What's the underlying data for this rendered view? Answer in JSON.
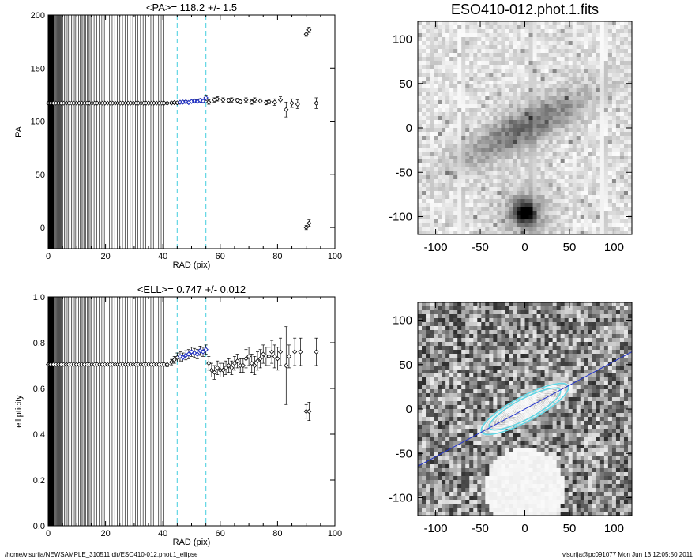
{
  "footer": {
    "path": "/home/visurija/NEWSAMPLE_310511.dir/ESO410-012.phot.1_ellipse",
    "stamp": "visurija@pc091077  Mon Jun 13 12:05:50 2011"
  },
  "image_title": "ESO410-012.phot.1.fits",
  "chart_data": [
    {
      "type": "scatter",
      "title": "<PA>= 118.2 +/-   1.5",
      "xlabel": "RAD (pix)",
      "ylabel": "PA",
      "xlim": [
        0,
        100
      ],
      "ylim": [
        -20,
        200
      ],
      "xticks": [
        "0",
        "20",
        "40",
        "60",
        "80",
        "100"
      ],
      "yticks": [
        "0",
        "50",
        "100",
        "150",
        "200"
      ],
      "fit_window": [
        45,
        55
      ],
      "dense_region_end": 41,
      "points": [
        [
          41.5,
          117.0,
          1
        ],
        [
          43,
          117.2,
          1
        ],
        [
          44,
          117.5,
          1
        ],
        [
          45,
          117.3,
          1
        ],
        [
          46,
          117.8,
          1
        ],
        [
          47,
          118.0,
          1.2
        ],
        [
          48,
          118.3,
          1.2
        ],
        [
          49,
          117.6,
          1.2
        ],
        [
          50,
          118.6,
          1.2
        ],
        [
          51,
          119.0,
          1.5
        ],
        [
          52,
          118.6,
          1.5
        ],
        [
          53,
          119.6,
          1.5
        ],
        [
          54,
          119.0,
          1.5
        ],
        [
          55,
          122.0,
          2.5
        ],
        [
          56,
          118.0,
          2
        ],
        [
          58,
          120.0,
          2
        ],
        [
          59,
          121.0,
          2
        ],
        [
          61,
          120.0,
          2
        ],
        [
          63,
          119.5,
          2
        ],
        [
          64,
          120.0,
          2
        ],
        [
          66,
          119.5,
          2
        ],
        [
          67,
          118.5,
          2
        ],
        [
          69,
          120.0,
          2
        ],
        [
          71,
          118.0,
          2
        ],
        [
          72,
          120.0,
          2
        ],
        [
          74,
          119.0,
          2
        ],
        [
          76,
          117.5,
          2
        ],
        [
          77,
          118.5,
          2
        ],
        [
          79,
          118.0,
          3
        ],
        [
          81,
          120.0,
          3
        ],
        [
          83,
          111.0,
          7
        ],
        [
          85,
          117.0,
          4
        ],
        [
          87,
          116.0,
          4
        ],
        [
          90,
          182.0,
          2
        ],
        [
          91,
          186.0,
          2.5
        ],
        [
          90,
          0.0,
          2
        ],
        [
          91,
          4.0,
          3
        ],
        [
          93.5,
          117.0,
          5
        ]
      ],
      "blue_points": [
        [
          46,
          117.8
        ],
        [
          47,
          118.0
        ],
        [
          48,
          118.3
        ],
        [
          49,
          117.6
        ],
        [
          50,
          118.6
        ],
        [
          51,
          119.0
        ],
        [
          52,
          118.6
        ],
        [
          53,
          119.6
        ],
        [
          54,
          119.0
        ],
        [
          55,
          122.0
        ]
      ]
    },
    {
      "type": "scatter",
      "title": "<ELL>= 0.747 +/-  0.012",
      "xlabel": "RAD (pix)",
      "ylabel": "ellipticity",
      "xlim": [
        0,
        100
      ],
      "ylim": [
        0.0,
        1.0
      ],
      "xticks": [
        "0",
        "20",
        "40",
        "60",
        "80",
        "100"
      ],
      "yticks": [
        "0.0",
        "0.2",
        "0.4",
        "0.6",
        "0.8",
        "1.0"
      ],
      "fit_window": [
        45,
        55
      ],
      "dense_region_end": 41,
      "points": [
        [
          41.5,
          0.705,
          0.01
        ],
        [
          43,
          0.715,
          0.012
        ],
        [
          44,
          0.725,
          0.015
        ],
        [
          45,
          0.735,
          0.02
        ],
        [
          46,
          0.74,
          0.02
        ],
        [
          47,
          0.735,
          0.02
        ],
        [
          48,
          0.745,
          0.02
        ],
        [
          49,
          0.75,
          0.02
        ],
        [
          50,
          0.76,
          0.02
        ],
        [
          51,
          0.755,
          0.02
        ],
        [
          52,
          0.75,
          0.02
        ],
        [
          53,
          0.765,
          0.02
        ],
        [
          54,
          0.76,
          0.02
        ],
        [
          55,
          0.77,
          0.02
        ],
        [
          56,
          0.71,
          0.03
        ],
        [
          57,
          0.68,
          0.03
        ],
        [
          58,
          0.67,
          0.03
        ],
        [
          59,
          0.69,
          0.03
        ],
        [
          60,
          0.68,
          0.03
        ],
        [
          61,
          0.68,
          0.03
        ],
        [
          62,
          0.69,
          0.03
        ],
        [
          63,
          0.7,
          0.03
        ],
        [
          64,
          0.69,
          0.03
        ],
        [
          65,
          0.71,
          0.03
        ],
        [
          66,
          0.72,
          0.03
        ],
        [
          67,
          0.7,
          0.03
        ],
        [
          68,
          0.7,
          0.03
        ],
        [
          69,
          0.73,
          0.04
        ],
        [
          70,
          0.74,
          0.04
        ],
        [
          71,
          0.71,
          0.04
        ],
        [
          72,
          0.7,
          0.04
        ],
        [
          73,
          0.72,
          0.04
        ],
        [
          74,
          0.73,
          0.04
        ],
        [
          75,
          0.75,
          0.04
        ],
        [
          76,
          0.74,
          0.04
        ],
        [
          77,
          0.74,
          0.04
        ],
        [
          78,
          0.76,
          0.05
        ],
        [
          79,
          0.74,
          0.05
        ],
        [
          80,
          0.73,
          0.05
        ],
        [
          81,
          0.76,
          0.06
        ],
        [
          83,
          0.7,
          0.17
        ],
        [
          84,
          0.74,
          0.05
        ],
        [
          86,
          0.76,
          0.06
        ],
        [
          88,
          0.76,
          0.06
        ],
        [
          90,
          0.5,
          0.03
        ],
        [
          91,
          0.5,
          0.04
        ],
        [
          93.5,
          0.76,
          0.06
        ]
      ],
      "blue_points": [
        [
          46,
          0.74
        ],
        [
          47,
          0.735
        ],
        [
          48,
          0.745
        ],
        [
          49,
          0.75
        ],
        [
          50,
          0.76
        ],
        [
          51,
          0.755
        ],
        [
          52,
          0.75
        ],
        [
          53,
          0.765
        ],
        [
          54,
          0.76
        ],
        [
          55,
          0.77
        ]
      ]
    }
  ],
  "images": [
    {
      "type": "heatmap",
      "xlim": [
        -120,
        120
      ],
      "ylim": [
        -120,
        120
      ],
      "xticks": [
        "-100",
        "-50",
        "0",
        "50",
        "100"
      ],
      "yticks": [
        "-100",
        "-50",
        "0",
        "50",
        "100"
      ]
    },
    {
      "type": "heatmap",
      "xlim": [
        -120,
        120
      ],
      "ylim": [
        -120,
        120
      ],
      "xticks": [
        "-100",
        "-50",
        "0",
        "50",
        "100"
      ],
      "yticks": [
        "-100",
        "-50",
        "0",
        "50",
        "100"
      ],
      "pa_line_angle_deg": 28.2,
      "ellipse_ell": 0.747
    }
  ]
}
